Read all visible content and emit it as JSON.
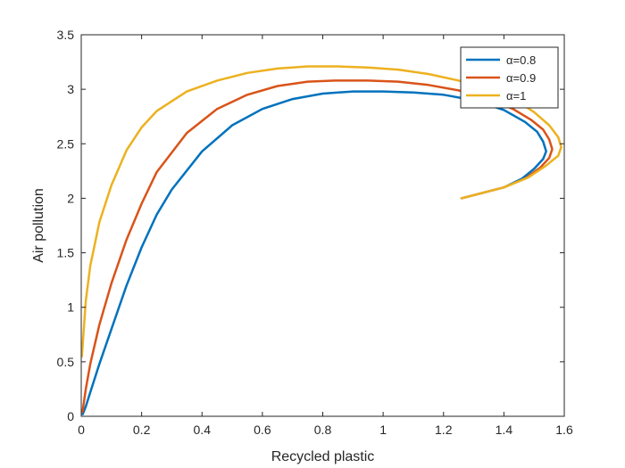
{
  "chart_data": {
    "type": "line",
    "title": "",
    "xlabel": "Recycled plastic",
    "ylabel": "Air pollution",
    "xlim": [
      0,
      1.6
    ],
    "ylim": [
      0,
      3.5
    ],
    "xticks": [
      0,
      0.2,
      0.4,
      0.6,
      0.8,
      1,
      1.2,
      1.4,
      1.6
    ],
    "xtick_labels": [
      "0",
      "0.2",
      "0.4",
      "0.6",
      "0.8",
      "1",
      "1.2",
      "1.4",
      "1.6"
    ],
    "yticks": [
      0,
      0.5,
      1,
      1.5,
      2,
      2.5,
      3,
      3.5
    ],
    "ytick_labels": [
      "0",
      "0.5",
      "1",
      "1.5",
      "2",
      "2.5",
      "3",
      "3.5"
    ],
    "grid": false,
    "box": true,
    "legend_position": "top-right",
    "series": [
      {
        "name": "α=0.8",
        "color": "#0072BD",
        "x": [
          1.26,
          1.33,
          1.4,
          1.46,
          1.5,
          1.53,
          1.54,
          1.53,
          1.51,
          1.47,
          1.4,
          1.3,
          1.2,
          1.1,
          1.0,
          0.9,
          0.8,
          0.7,
          0.6,
          0.5,
          0.4,
          0.3,
          0.25,
          0.2,
          0.15,
          0.1,
          0.06,
          0.03,
          0.015,
          0.005
        ],
        "y": [
          2.0,
          2.05,
          2.1,
          2.18,
          2.27,
          2.36,
          2.43,
          2.52,
          2.61,
          2.7,
          2.81,
          2.9,
          2.95,
          2.97,
          2.98,
          2.98,
          2.96,
          2.91,
          2.82,
          2.67,
          2.43,
          2.08,
          1.85,
          1.55,
          1.2,
          0.8,
          0.48,
          0.22,
          0.09,
          0.02
        ]
      },
      {
        "name": "α=0.9",
        "color": "#D95319",
        "x": [
          1.26,
          1.33,
          1.4,
          1.47,
          1.52,
          1.55,
          1.56,
          1.55,
          1.53,
          1.49,
          1.43,
          1.35,
          1.25,
          1.15,
          1.05,
          0.95,
          0.84,
          0.75,
          0.65,
          0.55,
          0.45,
          0.35,
          0.25,
          0.2,
          0.15,
          0.1,
          0.06,
          0.03,
          0.015,
          0.004
        ],
        "y": [
          2.0,
          2.05,
          2.1,
          2.18,
          2.28,
          2.37,
          2.45,
          2.54,
          2.63,
          2.72,
          2.82,
          2.91,
          2.99,
          3.04,
          3.07,
          3.08,
          3.08,
          3.07,
          3.03,
          2.95,
          2.82,
          2.6,
          2.24,
          1.95,
          1.62,
          1.22,
          0.84,
          0.48,
          0.25,
          0.04
        ]
      },
      {
        "name": "α=1",
        "color": "#EDB120",
        "x": [
          1.26,
          1.33,
          1.4,
          1.48,
          1.54,
          1.58,
          1.59,
          1.58,
          1.55,
          1.5,
          1.44,
          1.35,
          1.25,
          1.15,
          1.05,
          0.95,
          0.85,
          0.75,
          0.65,
          0.55,
          0.45,
          0.35,
          0.25,
          0.2,
          0.15,
          0.1,
          0.06,
          0.03,
          0.015,
          0.002
        ],
        "y": [
          2.0,
          2.05,
          2.1,
          2.19,
          2.3,
          2.39,
          2.47,
          2.56,
          2.67,
          2.79,
          2.9,
          3.0,
          3.08,
          3.14,
          3.18,
          3.2,
          3.21,
          3.21,
          3.19,
          3.15,
          3.08,
          2.98,
          2.8,
          2.65,
          2.44,
          2.12,
          1.78,
          1.38,
          1.06,
          0.55
        ]
      }
    ]
  }
}
